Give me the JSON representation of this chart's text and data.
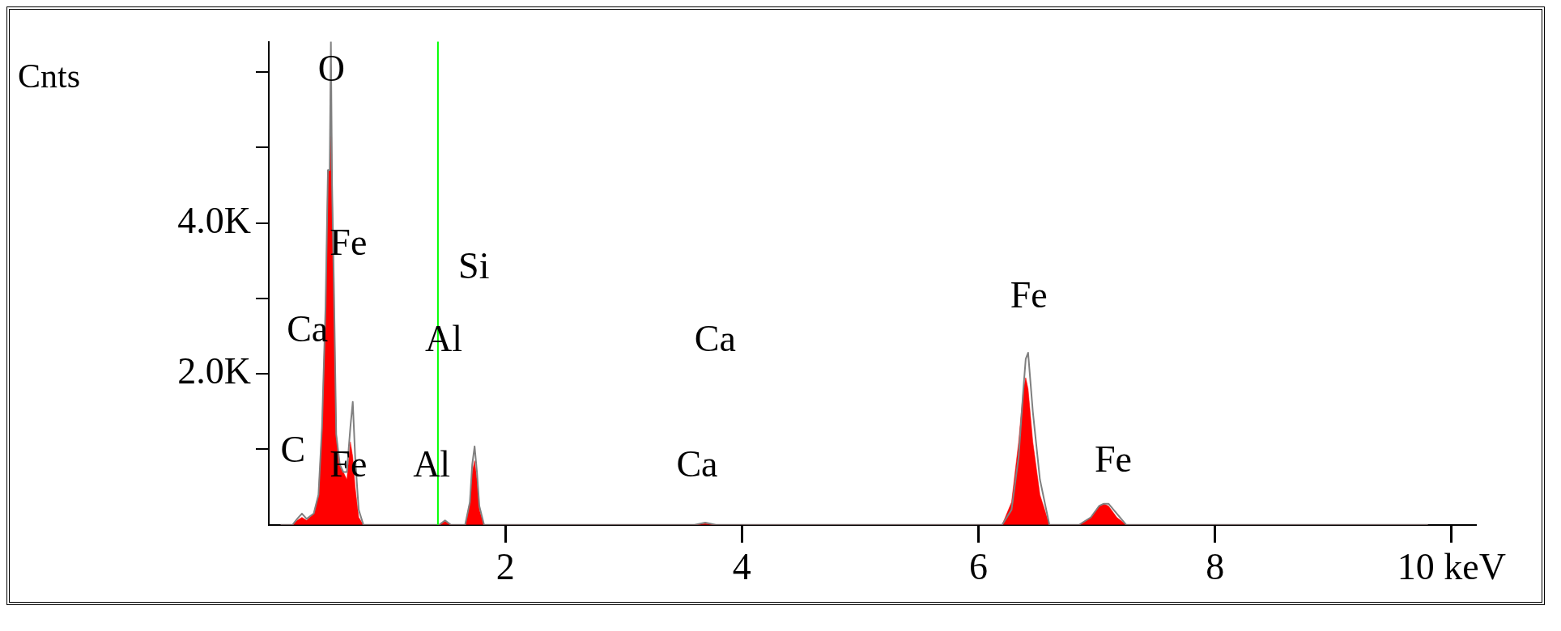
{
  "chart_data": {
    "type": "area",
    "ylabel": "Cnts",
    "x": [
      0.1,
      0.2,
      0.24,
      0.28,
      0.32,
      0.38,
      0.42,
      0.45,
      0.48,
      0.5,
      0.515,
      0.525,
      0.535,
      0.55,
      0.57,
      0.6,
      0.63,
      0.66,
      0.69,
      0.71,
      0.73,
      0.76,
      0.8,
      1.0,
      1.44,
      1.49,
      1.54,
      1.66,
      1.7,
      1.72,
      1.74,
      1.76,
      1.78,
      1.82,
      2.0,
      3.6,
      3.69,
      3.78,
      6.0,
      6.2,
      6.28,
      6.34,
      6.38,
      6.4,
      6.42,
      6.46,
      6.52,
      6.6,
      6.85,
      6.95,
      7.02,
      7.06,
      7.1,
      7.17,
      7.25,
      9.8
    ],
    "series": [
      {
        "color": "#ff0000",
        "values": [
          0,
          0,
          60,
          100,
          60,
          150,
          400,
          1300,
          2900,
          4700,
          4700,
          6100,
          4500,
          3200,
          1200,
          800,
          700,
          600,
          1100,
          900,
          500,
          100,
          0,
          0,
          0,
          50,
          0,
          0,
          300,
          700,
          850,
          600,
          200,
          0,
          0,
          0,
          20,
          0,
          0,
          0,
          300,
          1100,
          1800,
          1950,
          1800,
          1100,
          400,
          0,
          0,
          100,
          250,
          280,
          250,
          100,
          0,
          0
        ]
      },
      {
        "type": "line",
        "color": "#808080",
        "values": [
          0,
          0,
          80,
          150,
          80,
          150,
          400,
          1300,
          2900,
          4700,
          4700,
          6400,
          4500,
          3200,
          1200,
          800,
          700,
          700,
          1300,
          1630,
          900,
          200,
          0,
          0,
          0,
          60,
          0,
          0,
          300,
          800,
          1040,
          700,
          250,
          0,
          0,
          0,
          30,
          0,
          0,
          0,
          200,
          900,
          1800,
          2200,
          2280,
          1500,
          600,
          0,
          0,
          100,
          250,
          280,
          280,
          150,
          0,
          0
        ]
      }
    ],
    "xlim": [
      0,
      10.2
    ],
    "xticks": [
      2,
      4,
      6,
      8,
      {
        "value": 10,
        "label": "10 keV"
      }
    ],
    "ylim": [
      0,
      6400
    ],
    "yticks": [
      {
        "value": 1000,
        "label": null
      },
      {
        "value": 2000,
        "label": "2.0K"
      },
      {
        "value": 3000,
        "label": null
      },
      {
        "value": 4000,
        "label": "4.0K"
      },
      {
        "value": 5000,
        "label": null
      },
      {
        "value": 6000,
        "label": null
      }
    ],
    "ref_lines": [
      {
        "axis": "x",
        "value": 1.43,
        "color": "#00ff00"
      }
    ],
    "marker": "none",
    "legend": false,
    "annotations": [
      "O",
      "Fe",
      "Si",
      "Ca",
      "Al",
      "Ca",
      "Fe",
      "C",
      "Fe",
      "Al",
      "Ca",
      "Fe"
    ]
  }
}
